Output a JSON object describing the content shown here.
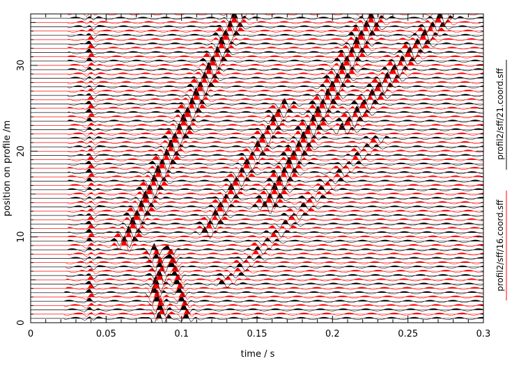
{
  "chart_data": {
    "type": "line",
    "title": "",
    "xlabel": "time / s",
    "ylabel": "position on profile /m",
    "xlim": [
      0,
      0.3
    ],
    "ylim": [
      0,
      36
    ],
    "x_ticks": [
      0,
      0.05,
      0.1,
      0.15,
      0.2,
      0.25,
      0.3
    ],
    "x_tick_labels": [
      "0",
      "0.05",
      "0.1",
      "0.15",
      "0.2",
      "0.25",
      "0.3"
    ],
    "y_ticks": [
      0,
      10,
      20,
      30
    ],
    "y_tick_labels": [
      "0",
      "10",
      "20",
      "30"
    ],
    "grid": false,
    "trace_spacing_m": 0.5,
    "series": [
      {
        "name": "profil2/sff/16.coord.sff",
        "color": "#ff0000",
        "trace_positions_m": [
          1,
          36
        ],
        "description": "red wiggle traces with filled positive lobes"
      },
      {
        "name": "profil2/sff/21.coord.sff",
        "color": "#000000",
        "trace_positions_m": [
          0.5,
          35.5
        ],
        "description": "black wiggle traces with filled positive lobes"
      }
    ],
    "legend_placement": "right-side, rotated",
    "legend": [
      "profil2/sff/16.coord.sff",
      "profil2/sff/21.coord.sff"
    ]
  }
}
